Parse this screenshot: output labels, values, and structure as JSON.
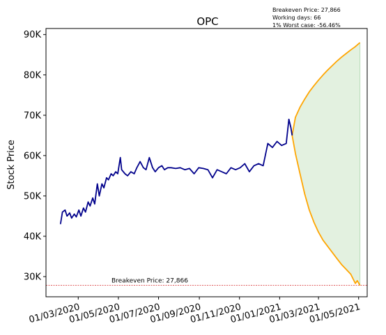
{
  "chart_data": {
    "type": "line",
    "title": "OPC",
    "ylabel": "Stock Price",
    "xlabel": "",
    "notes": [
      "Breakeven Price: 27,866",
      "Working days: 66",
      "1% Worst case: -56.46%"
    ],
    "breakeven": {
      "value": 27866,
      "label": "Breakeven Price: 27,866",
      "color": "#d62728"
    },
    "ylim": [
      25000,
      91500
    ],
    "y_ticks": [
      {
        "value": 30000,
        "label": "30K"
      },
      {
        "value": 40000,
        "label": "40K"
      },
      {
        "value": 50000,
        "label": "50K"
      },
      {
        "value": 60000,
        "label": "60K"
      },
      {
        "value": 70000,
        "label": "70K"
      },
      {
        "value": 80000,
        "label": "80K"
      },
      {
        "value": 90000,
        "label": "90K"
      }
    ],
    "xlim": [
      "2020-01-12",
      "2021-05-14"
    ],
    "x_ticks": [
      {
        "value": "2020-03-01",
        "label": "01/03/2020"
      },
      {
        "value": "2020-05-01",
        "label": "01/05/2020"
      },
      {
        "value": "2020-07-01",
        "label": "01/07/2020"
      },
      {
        "value": "2020-09-01",
        "label": "01/09/2020"
      },
      {
        "value": "2020-11-01",
        "label": "01/11/2020"
      },
      {
        "value": "2021-01-01",
        "label": "01/01/2021"
      },
      {
        "value": "2021-03-01",
        "label": "01/03/2021"
      },
      {
        "value": "2021-05-01",
        "label": "01/05/2021"
      }
    ],
    "grid": false,
    "colors": {
      "history": "#00008b",
      "projection": "#ffa500",
      "band": "#e3f1e0",
      "band_edge": "#b8dcb8"
    },
    "history": {
      "x": [
        "2020-02-03",
        "2020-02-06",
        "2020-02-10",
        "2020-02-13",
        "2020-02-17",
        "2020-02-20",
        "2020-02-24",
        "2020-02-27",
        "2020-03-02",
        "2020-03-05",
        "2020-03-09",
        "2020-03-12",
        "2020-03-16",
        "2020-03-19",
        "2020-03-23",
        "2020-03-26",
        "2020-03-30",
        "2020-04-02",
        "2020-04-06",
        "2020-04-09",
        "2020-04-13",
        "2020-04-16",
        "2020-04-20",
        "2020-04-23",
        "2020-04-27",
        "2020-04-30",
        "2020-05-04",
        "2020-05-06",
        "2020-05-11",
        "2020-05-15",
        "2020-05-20",
        "2020-05-25",
        "2020-05-29",
        "2020-06-03",
        "2020-06-08",
        "2020-06-12",
        "2020-06-17",
        "2020-06-22",
        "2020-06-26",
        "2020-07-01",
        "2020-07-06",
        "2020-07-10",
        "2020-07-15",
        "2020-07-20",
        "2020-07-27",
        "2020-08-03",
        "2020-08-10",
        "2020-08-17",
        "2020-08-24",
        "2020-08-31",
        "2020-09-07",
        "2020-09-14",
        "2020-09-21",
        "2020-09-28",
        "2020-10-05",
        "2020-10-12",
        "2020-10-19",
        "2020-10-26",
        "2020-11-02",
        "2020-11-09",
        "2020-11-16",
        "2020-11-23",
        "2020-11-30",
        "2020-12-07",
        "2020-12-14",
        "2020-12-21",
        "2020-12-28",
        "2021-01-04",
        "2021-01-11",
        "2021-01-15",
        "2021-01-18",
        "2021-01-20"
      ],
      "y": [
        43000,
        46000,
        46500,
        45000,
        45800,
        44500,
        45500,
        44800,
        46500,
        45000,
        47000,
        46000,
        48500,
        47500,
        49500,
        48000,
        53000,
        50000,
        53000,
        52000,
        54500,
        54000,
        55500,
        55000,
        56000,
        55500,
        59500,
        56500,
        55500,
        55000,
        56000,
        55500,
        57000,
        58500,
        57000,
        56500,
        59500,
        57000,
        56000,
        57000,
        57500,
        56500,
        57000,
        57000,
        56800,
        57000,
        56500,
        56800,
        55500,
        57000,
        56800,
        56500,
        54500,
        56500,
        56000,
        55500,
        57000,
        56500,
        57000,
        58000,
        56000,
        57500,
        58000,
        57500,
        63000,
        62000,
        63500,
        62500,
        63000,
        69000,
        67000,
        65000
      ]
    },
    "projection_upper": {
      "x": [
        "2021-01-20",
        "2021-01-25",
        "2021-02-01",
        "2021-02-08",
        "2021-02-15",
        "2021-02-22",
        "2021-03-01",
        "2021-03-08",
        "2021-03-15",
        "2021-03-22",
        "2021-03-29",
        "2021-04-05",
        "2021-04-12",
        "2021-04-19",
        "2021-04-26",
        "2021-05-03"
      ],
      "y": [
        65000,
        69500,
        72000,
        74000,
        75800,
        77300,
        78700,
        80000,
        81200,
        82300,
        83400,
        84400,
        85300,
        86200,
        87000,
        88000
      ]
    },
    "projection_lower": {
      "x": [
        "2021-01-20",
        "2021-01-25",
        "2021-02-01",
        "2021-02-08",
        "2021-02-15",
        "2021-02-22",
        "2021-03-01",
        "2021-03-08",
        "2021-03-15",
        "2021-03-22",
        "2021-03-29",
        "2021-04-05",
        "2021-04-12",
        "2021-04-19",
        "2021-04-26",
        "2021-04-29",
        "2021-05-03"
      ],
      "y": [
        65000,
        60500,
        55500,
        50500,
        46500,
        43500,
        41000,
        39000,
        37500,
        36000,
        34500,
        33000,
        31800,
        30600,
        28300,
        29000,
        27800
      ]
    }
  }
}
